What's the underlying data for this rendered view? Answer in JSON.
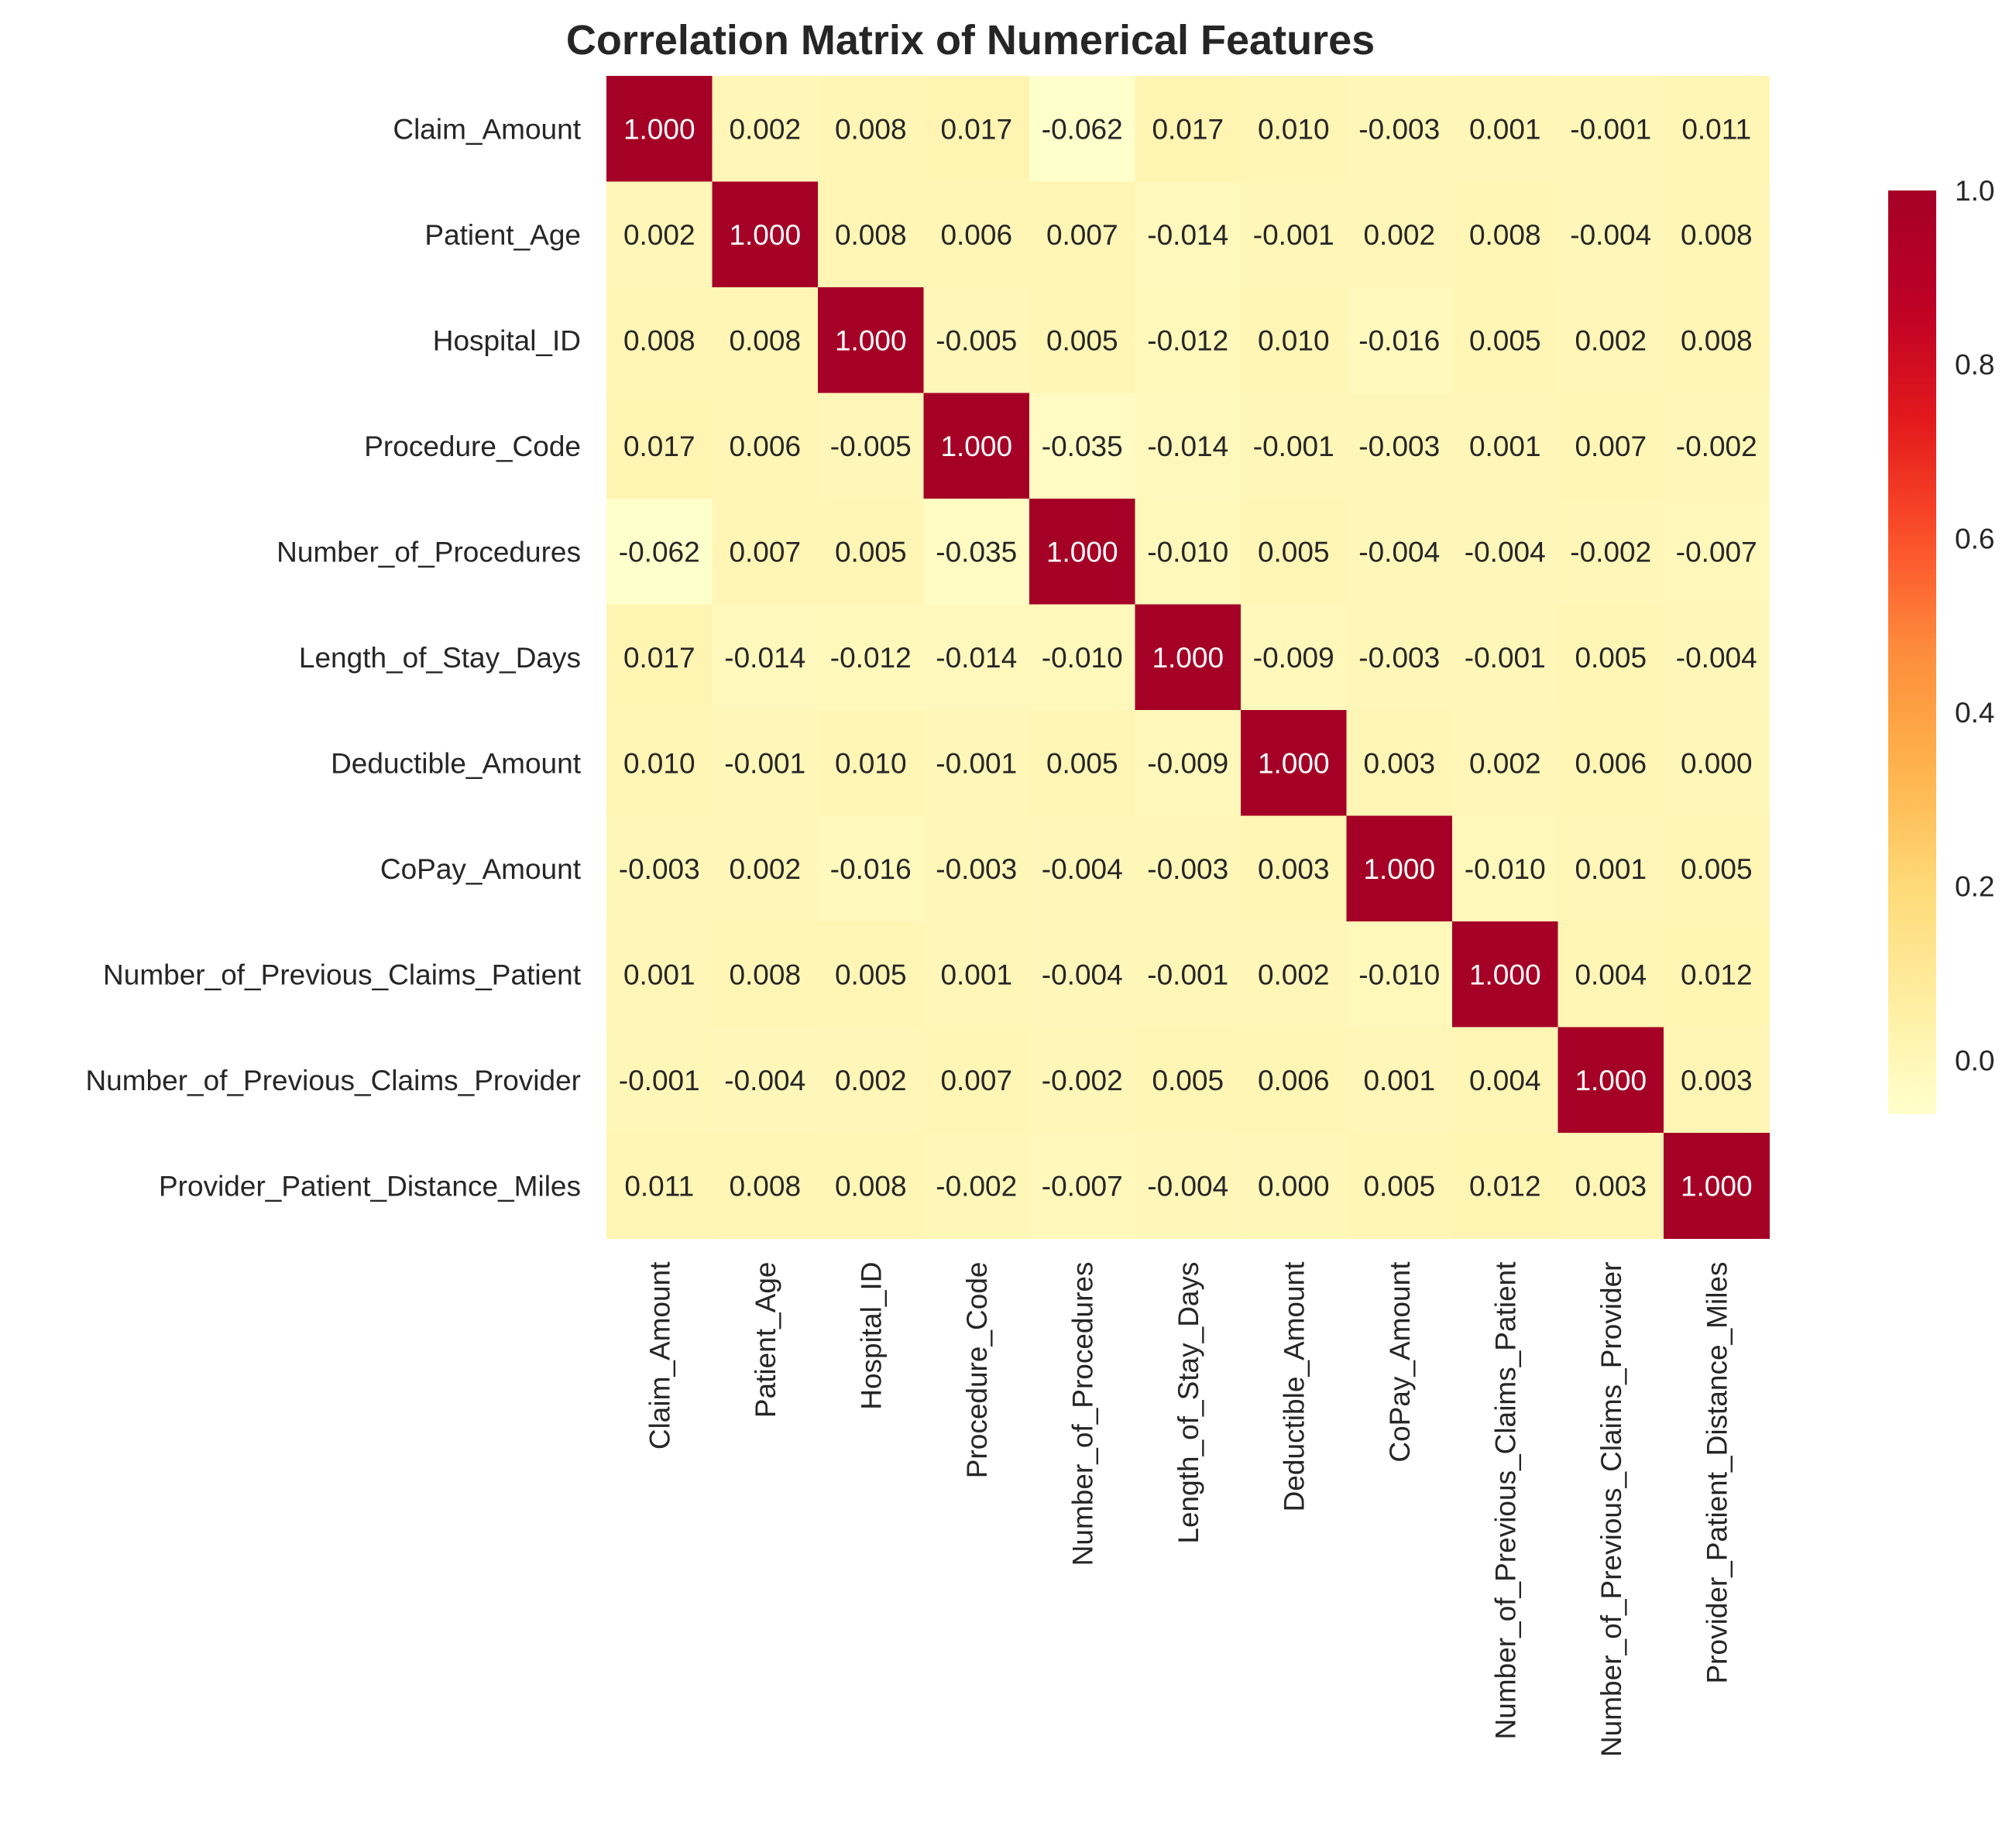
{
  "chart_data": {
    "type": "heatmap",
    "title": "Correlation Matrix of Numerical Features",
    "xlabel": "",
    "ylabel": "",
    "labels": [
      "Claim_Amount",
      "Patient_Age",
      "Hospital_ID",
      "Procedure_Code",
      "Number_of_Procedures",
      "Length_of_Stay_Days",
      "Deductible_Amount",
      "CoPay_Amount",
      "Number_of_Previous_Claims_Patient",
      "Number_of_Previous_Claims_Provider",
      "Provider_Patient_Distance_Miles"
    ],
    "values": [
      [
        1.0,
        0.002,
        0.008,
        0.017,
        -0.062,
        0.017,
        0.01,
        -0.003,
        0.001,
        -0.001,
        0.011
      ],
      [
        0.002,
        1.0,
        0.008,
        0.006,
        0.007,
        -0.014,
        -0.001,
        0.002,
        0.008,
        -0.004,
        0.008
      ],
      [
        0.008,
        0.008,
        1.0,
        -0.005,
        0.005,
        -0.012,
        0.01,
        -0.016,
        0.005,
        0.002,
        0.008
      ],
      [
        0.017,
        0.006,
        -0.005,
        1.0,
        -0.035,
        -0.014,
        -0.001,
        -0.003,
        0.001,
        0.007,
        -0.002
      ],
      [
        -0.062,
        0.007,
        0.005,
        -0.035,
        1.0,
        -0.01,
        0.005,
        -0.004,
        -0.004,
        -0.002,
        -0.007
      ],
      [
        0.017,
        -0.014,
        -0.012,
        -0.014,
        -0.01,
        1.0,
        -0.009,
        -0.003,
        -0.001,
        0.005,
        -0.004
      ],
      [
        0.01,
        -0.001,
        0.01,
        -0.001,
        0.005,
        -0.009,
        1.0,
        0.003,
        0.002,
        0.006,
        0.0
      ],
      [
        -0.003,
        0.002,
        -0.016,
        -0.003,
        -0.004,
        -0.003,
        0.003,
        1.0,
        -0.01,
        0.001,
        0.005
      ],
      [
        0.001,
        0.008,
        0.005,
        0.001,
        -0.004,
        -0.001,
        0.002,
        -0.01,
        1.0,
        0.004,
        0.012
      ],
      [
        -0.001,
        -0.004,
        0.002,
        0.007,
        -0.002,
        0.005,
        0.006,
        0.001,
        0.004,
        1.0,
        0.003
      ],
      [
        0.011,
        0.008,
        0.008,
        -0.002,
        -0.007,
        -0.004,
        0.0,
        0.005,
        0.012,
        0.003,
        1.0
      ]
    ],
    "value_format": "0.000",
    "colormap": "YlOrRd",
    "color_range": [
      -0.062,
      1.0
    ],
    "colorbar": {
      "ticks": [
        0.0,
        0.2,
        0.4,
        0.6,
        0.8,
        1.0
      ],
      "tick_labels": [
        "0.0",
        "0.2",
        "0.4",
        "0.6",
        "0.8",
        "1.0"
      ]
    },
    "colors": {
      "text_dark": "#262626",
      "text_light": "#ffffff"
    }
  }
}
